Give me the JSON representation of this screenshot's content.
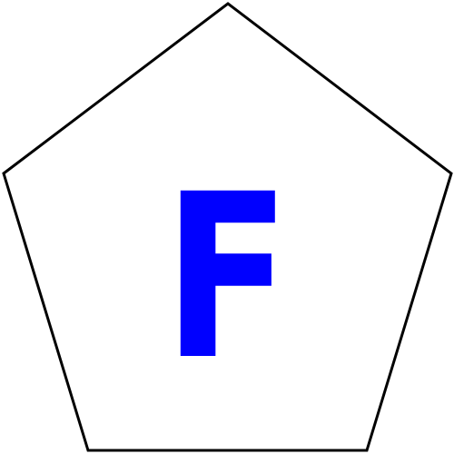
{
  "figure": {
    "shape": "pentagon",
    "label": "F",
    "label_color": "#0000ff",
    "outline_color": "#000000",
    "fill_color": "#ffffff",
    "background_color": "#ffffff"
  }
}
